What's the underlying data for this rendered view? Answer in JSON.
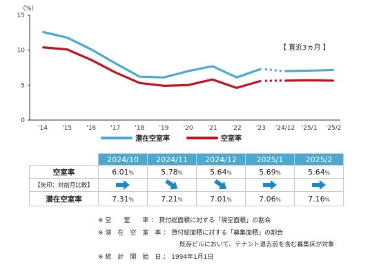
{
  "chart_data": {
    "type": "line",
    "unit_label": "（%）",
    "categories": [
      "'14",
      "'15",
      "'16",
      "'17",
      "'18",
      "'19",
      "'20",
      "'21",
      "'22",
      "'23",
      "'24/12",
      "'25/1",
      "'25/2"
    ],
    "ylim": [
      0,
      15
    ],
    "yticks": [
      "0",
      "5",
      "10",
      "15"
    ],
    "grid": false,
    "annotation": "【 直近3ヵ月 】",
    "series": [
      {
        "name": "潜在空室率",
        "color": "#4aa9d3",
        "values": [
          12.6,
          11.8,
          10.1,
          8.1,
          6.2,
          6.1,
          7.0,
          7.7,
          6.1,
          7.3,
          7.01,
          7.06,
          7.16
        ]
      },
      {
        "name": "空室率",
        "color": "#c0111f",
        "values": [
          10.4,
          10.1,
          8.6,
          6.8,
          5.3,
          4.9,
          5.0,
          5.8,
          4.6,
          5.6,
          5.64,
          5.69,
          5.64
        ]
      }
    ]
  },
  "legend": {
    "potential": "潜在空室率",
    "vacancy": "空室率"
  },
  "table": {
    "headers": [
      "2024/10",
      "2024/11",
      "2024/12",
      "2025/1",
      "2025/2"
    ],
    "rate_label": "空室率",
    "arrow_label": "【矢印：対前月比較】",
    "potential_label": "潜在空室率",
    "pct": "%",
    "rates": [
      "6.01",
      "5.78",
      "5.64",
      "5.69",
      "5.64"
    ],
    "potentials": [
      "7.31",
      "7.21",
      "7.01",
      "7.06",
      "7.16"
    ],
    "arrows": [
      "right",
      "down-right",
      "down-right",
      "right",
      "right"
    ],
    "arrow_color": "#1f87c9"
  },
  "notes": {
    "line1": "※ 空　　室　　率 ： 貸付総面積に対する「現空面積」の割合",
    "line2": "※ 潜　在　空　室　率 ： 貸付総面積に対する「募集面積」の割合",
    "line3": "既存ビルにおいて、テナント退去前を含む募集床が対象",
    "line4": "※ 統　計　開　始　日 ： 1994年1月1日"
  }
}
